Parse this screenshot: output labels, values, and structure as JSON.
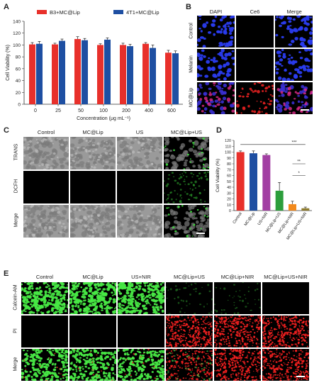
{
  "panels": {
    "A": {
      "letter": "A",
      "chart_data": {
        "type": "bar",
        "categories": [
          "0",
          "25",
          "50",
          "100",
          "200",
          "400",
          "600"
        ],
        "series": [
          {
            "name": "B3+MC@Lip",
            "color": "#e8302b",
            "values": [
              101,
              101,
              110,
              100,
              100,
              102,
              87
            ],
            "errors": [
              3,
              2,
              4,
              2,
              3,
              2,
              4
            ]
          },
          {
            "name": "4T1+MC@Lip",
            "color": "#1e4fa2",
            "values": [
              102,
              107,
              108,
              109,
              98,
              95,
              86
            ],
            "errors": [
              4,
              3,
              3,
              3,
              3,
              5,
              4
            ]
          }
        ],
        "xlabel": "Concentration (μg mL⁻¹)",
        "ylabel": "Cell Viability (%)",
        "ylim": [
          0,
          140
        ],
        "yticks": [
          "0",
          "20",
          "40",
          "60",
          "80",
          "100",
          "120",
          "140"
        ],
        "legend": "top"
      }
    },
    "B": {
      "letter": "B",
      "columns": [
        "DAPI",
        "Ce6",
        "Merge"
      ],
      "rows": [
        "Control",
        "Melanin",
        "MC@Lip"
      ]
    },
    "C": {
      "letter": "C",
      "columns": [
        "Control",
        "MC@Lip",
        "US",
        "MC@Lip+US"
      ],
      "rows": [
        "TRANS",
        "DCFH",
        "Merge"
      ]
    },
    "D": {
      "letter": "D",
      "chart_data": {
        "type": "bar",
        "categories": [
          "Control",
          "MC@Lip",
          "US+NIR",
          "MC@Lip+US",
          "MC@Lip+NIR",
          "MC@Lip+US+NIR"
        ],
        "values": [
          100,
          98,
          95,
          34,
          11,
          4
        ],
        "errors": [
          2,
          4,
          2,
          14,
          5,
          2
        ],
        "colors": [
          "#e8302b",
          "#1e4fa2",
          "#a23fa3",
          "#2c9e3c",
          "#f28a1e",
          "#8e7b2e"
        ],
        "ylabel": "Cell Viability (%)",
        "ylim": [
          0,
          120
        ],
        "yticks": [
          "0",
          "10",
          "20",
          "30",
          "40",
          "50",
          "60",
          "70",
          "80",
          "90",
          "100",
          "110",
          "120"
        ],
        "significance": [
          {
            "label": "***",
            "from": 0,
            "to": 5
          },
          {
            "label": "**",
            "from": 4,
            "to": 5
          },
          {
            "label": "*",
            "from": 4,
            "to": 5
          }
        ]
      }
    },
    "E": {
      "letter": "E",
      "columns": [
        "Control",
        "MC@Lip",
        "US+NIR",
        "MC@Lip+US",
        "MC@Lip+NIR",
        "MC@Lip+US+NIR"
      ],
      "rows": [
        "Calcein-AM",
        "PI",
        "Merge"
      ]
    }
  }
}
